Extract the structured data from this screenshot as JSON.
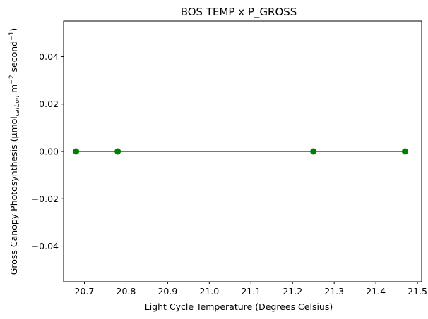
{
  "chart_data": {
    "type": "scatter",
    "title": "BOS TEMP x P_GROSS",
    "xlabel": "Light Cycle Temperature (Degrees Celsius)",
    "ylabel": {
      "prefix": "Gross Canopy Photosynthesis (μmol",
      "subscript": "carbon",
      "middle": " m",
      "sup1": "−2",
      "mid2": " second",
      "sup2": "−1",
      "suffix": ")"
    },
    "xlim": [
      20.65,
      21.51
    ],
    "ylim": [
      -0.055,
      0.055
    ],
    "x_ticks": [
      20.7,
      20.8,
      20.9,
      21.0,
      21.1,
      21.2,
      21.3,
      21.4,
      21.5
    ],
    "x_tick_labels": [
      "20.7",
      "20.8",
      "20.9",
      "21.0",
      "21.1",
      "21.2",
      "21.3",
      "21.4",
      "21.5"
    ],
    "y_ticks": [
      0.04,
      0.02,
      0.0,
      -0.02,
      -0.04
    ],
    "y_tick_labels": [
      "0.04",
      "0.02",
      "0.00",
      "−0.02",
      "−0.04"
    ],
    "grid": false,
    "series": [
      {
        "kind": "points",
        "color": "#008000",
        "x": [
          20.68,
          20.78,
          21.25,
          21.47
        ],
        "y": [
          0,
          0,
          0,
          0
        ]
      },
      {
        "kind": "fit-line",
        "color": "#ff0000",
        "x": [
          20.68,
          21.47
        ],
        "y": [
          0,
          0
        ]
      }
    ]
  }
}
